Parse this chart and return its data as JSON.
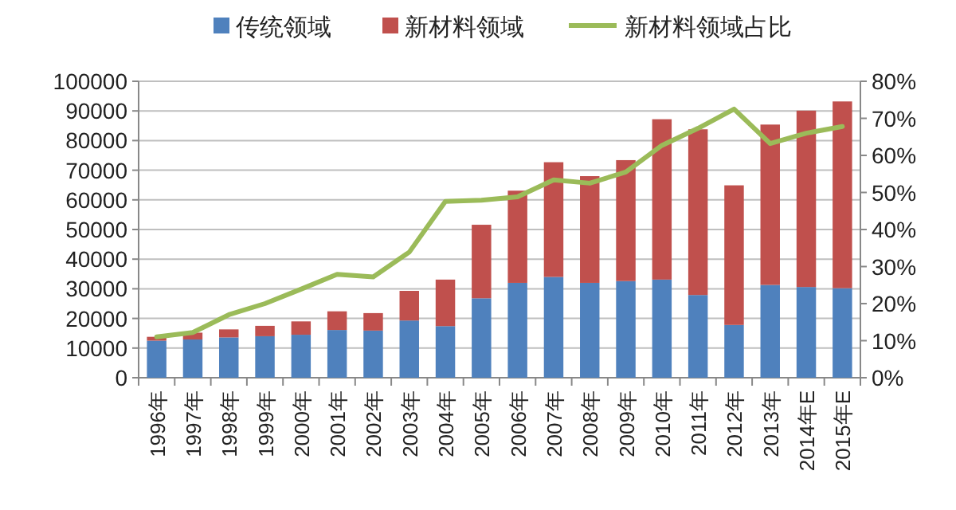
{
  "chart_data": {
    "type": "bar",
    "stacked": true,
    "legend": "top",
    "grid": "y",
    "categories": [
      "1996年",
      "1997年",
      "1998年",
      "1999年",
      "2000年",
      "2001年",
      "2002年",
      "2003年",
      "2004年",
      "2005年",
      "2006年",
      "2007年",
      "2008年",
      "2009年",
      "2010年",
      "2011年",
      "2012年",
      "2013年",
      "2014年E",
      "2015年E"
    ],
    "series": [
      {
        "name": "传统领域",
        "color": "#4f81bd",
        "values": [
          12500,
          12900,
          13600,
          14000,
          14500,
          16100,
          15900,
          19300,
          17400,
          26800,
          32000,
          34000,
          32000,
          32600,
          33100,
          27900,
          17800,
          31300,
          30600,
          30200
        ]
      },
      {
        "name": "新材料领域",
        "color": "#c0504d",
        "values": [
          1300,
          2300,
          2700,
          3500,
          4500,
          6300,
          5900,
          10000,
          15700,
          24800,
          31100,
          38700,
          36000,
          40800,
          54100,
          55900,
          47100,
          54100,
          59500,
          63000
        ]
      },
      {
        "name": "新材料领域占比",
        "type": "line",
        "axis": "y2",
        "color": "#9bbb59",
        "values": [
          11.0,
          12.2,
          17.0,
          20.0,
          23.9,
          27.9,
          27.2,
          33.9,
          47.6,
          47.9,
          48.8,
          53.4,
          52.5,
          55.5,
          62.7,
          67.3,
          72.5,
          63.2,
          66.0,
          67.8
        ]
      }
    ],
    "ylim": [
      0,
      100000
    ],
    "yticks": [
      0,
      10000,
      20000,
      30000,
      40000,
      50000,
      60000,
      70000,
      80000,
      90000,
      100000
    ],
    "y2lim": [
      0,
      80
    ],
    "y2ticks": [
      {
        "value": 0,
        "label": "0%"
      },
      {
        "value": 10,
        "label": "10%"
      },
      {
        "value": 20,
        "label": "20%"
      },
      {
        "value": 30,
        "label": "30%"
      },
      {
        "value": 40,
        "label": "40%"
      },
      {
        "value": 50,
        "label": "50%"
      },
      {
        "value": 60,
        "label": "60%"
      },
      {
        "value": 70,
        "label": "70%"
      },
      {
        "value": 80,
        "label": "80%"
      }
    ]
  }
}
